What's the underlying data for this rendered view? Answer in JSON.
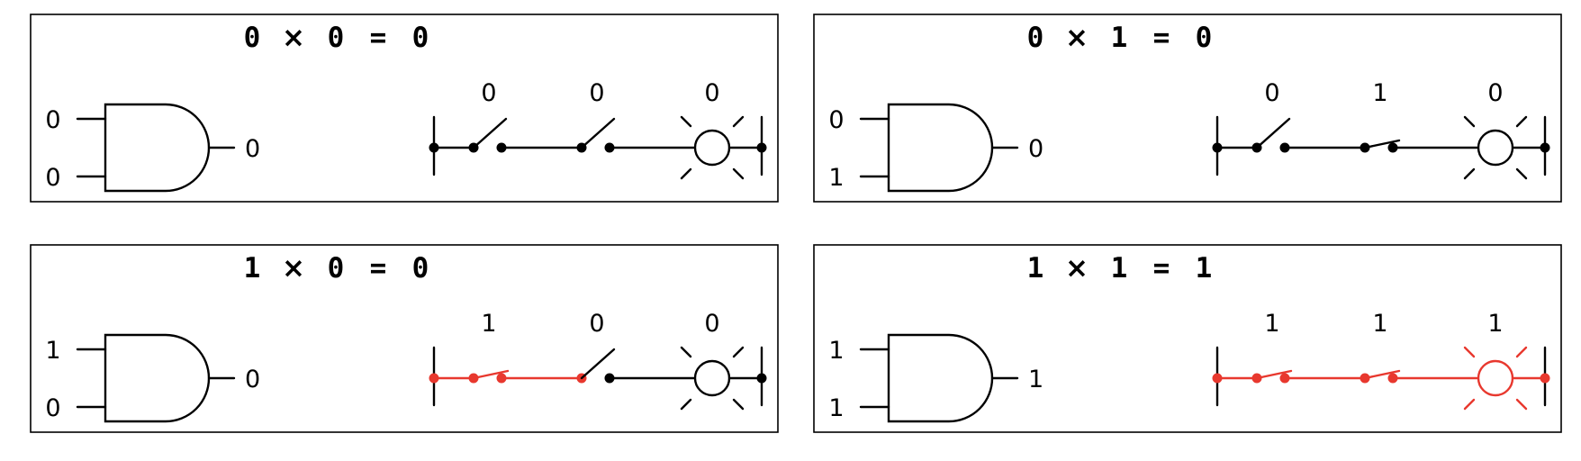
{
  "colors": {
    "off": "#000000",
    "on": "#e8382e",
    "frame": "#000000"
  },
  "panels": [
    {
      "a": "0",
      "b": "0",
      "y": "0",
      "op": "×",
      "eq": "="
    },
    {
      "a": "0",
      "b": "1",
      "y": "0",
      "op": "×",
      "eq": "="
    },
    {
      "a": "1",
      "b": "0",
      "y": "0",
      "op": "×",
      "eq": "="
    },
    {
      "a": "1",
      "b": "1",
      "y": "1",
      "op": "×",
      "eq": "="
    }
  ]
}
